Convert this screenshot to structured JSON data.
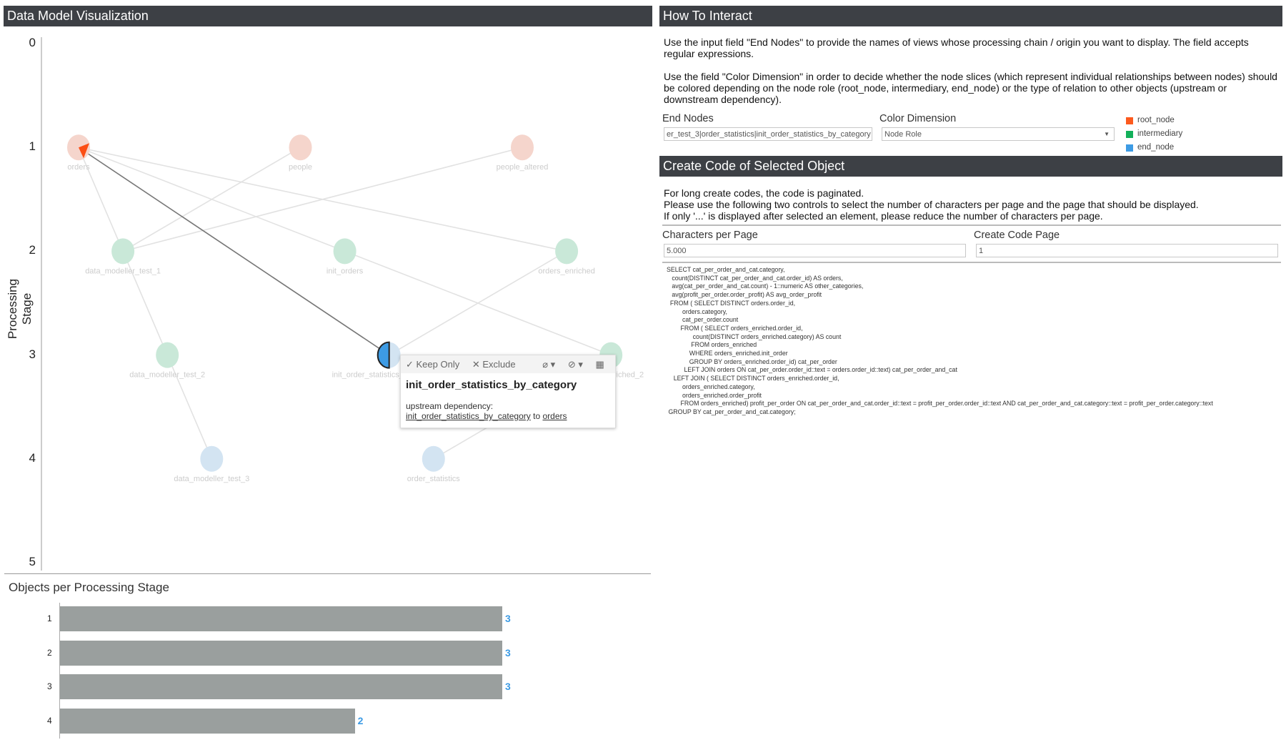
{
  "left_panel": {
    "title": "Data Model Visualization",
    "y_axis_label": "Processing Stage",
    "y_ticks": [
      "0",
      "1",
      "2",
      "3",
      "4",
      "5"
    ]
  },
  "graph": {
    "nodes": [
      {
        "name": "orders",
        "stage": 1,
        "col": 0,
        "role": "root_node",
        "highlight": true
      },
      {
        "name": "people",
        "stage": 1,
        "col": 5,
        "role": "root_node"
      },
      {
        "name": "people_altered",
        "stage": 1,
        "col": 10,
        "role": "root_node"
      },
      {
        "name": "data_modeller_test_1",
        "stage": 2,
        "col": 1,
        "role": "intermediary"
      },
      {
        "name": "init_orders",
        "stage": 2,
        "col": 6,
        "role": "intermediary"
      },
      {
        "name": "orders_enriched",
        "stage": 2,
        "col": 11,
        "role": "intermediary"
      },
      {
        "name": "data_modeller_test_2",
        "stage": 3,
        "col": 2,
        "role": "intermediary"
      },
      {
        "name": "init_order_statistics_by_category",
        "stage": 3,
        "col": 7,
        "role": "end_node",
        "highlight": true
      },
      {
        "name": "orders_enriched_2",
        "stage": 3,
        "col": 12,
        "role": "intermediary"
      },
      {
        "name": "data_modeller_test_3",
        "stage": 4,
        "col": 3,
        "role": "end_node"
      },
      {
        "name": "order_statistics",
        "stage": 4,
        "col": 8,
        "role": "end_node"
      }
    ],
    "edges": [
      [
        "orders",
        "data_modeller_test_1"
      ],
      [
        "people",
        "data_modeller_test_1"
      ],
      [
        "people_altered",
        "data_modeller_test_1"
      ],
      [
        "orders",
        "init_orders"
      ],
      [
        "init_orders",
        "orders_enriched_2"
      ],
      [
        "orders",
        "orders_enriched"
      ],
      [
        "orders_enriched",
        "init_order_statistics_by_category"
      ],
      [
        "data_modeller_test_1",
        "data_modeller_test_2"
      ],
      [
        "data_modeller_test_2",
        "data_modeller_test_3"
      ],
      [
        "order_statistics",
        "orders_enriched_2"
      ],
      [
        "orders",
        "init_order_statistics_by_category",
        "selected"
      ]
    ]
  },
  "tooltip": {
    "keep_only": "✓ Keep Only",
    "exclude": "✕ Exclude",
    "title": "init_order_statistics_by_category",
    "relation": "upstream dependency:",
    "from": "init_order_statistics_by_category",
    "to_word": "to",
    "to": "orders"
  },
  "bar_chart": {
    "title": "Objects per Processing Stage",
    "chart_data": {
      "type": "bar",
      "orientation": "horizontal",
      "categories": [
        "1",
        "2",
        "3",
        "4"
      ],
      "values": [
        3,
        3,
        3,
        2
      ],
      "title": "Objects per Processing Stage",
      "xlim": [
        0,
        3
      ]
    }
  },
  "how_to": {
    "title": "How To Interact",
    "p1": "Use the input field \"End Nodes\" to provide the names of views whose processing chain / origin you want to display. The field accepts regular expressions.",
    "p2": "Use the field \"Color Dimension\" in order to decide whether the node slices (which represent individual relationships between nodes) should be colored depending on the node role (root_node, intermediary, end_node) or the type of relation to other objects (upstream or downstream dependency).",
    "end_nodes_label": "End Nodes",
    "end_nodes_value": "er_test_3|order_statistics|init_order_statistics_by_category",
    "color_dim_label": "Color Dimension",
    "color_dim_value": "Node Role",
    "legend": [
      {
        "label": "root_node",
        "color": "#fc5a1e"
      },
      {
        "label": "intermediary",
        "color": "#13b05a"
      },
      {
        "label": "end_node",
        "color": "#3d9be4"
      }
    ]
  },
  "create_code": {
    "title": "Create Code of Selected Object",
    "l1": "For long create codes, the code is paginated.",
    "l2": "Please use the following two controls to select the number of characters per page and the page that should be displayed.",
    "l3": "If only '...' is displayed after selected an element, please reduce the number of characters per page.",
    "chars_label": "Characters per Page",
    "chars_value": "5.000",
    "page_label": "Create Code Page",
    "page_value": "1",
    "code": "SELECT cat_per_order_and_cat.category,\n   count(DISTINCT cat_per_order_and_cat.order_id) AS orders,\n   avg(cat_per_order_and_cat.count) - 1::numeric AS other_categories,\n   avg(profit_per_order.order_profit) AS avg_order_profit\n  FROM ( SELECT DISTINCT orders.order_id,\n         orders.category,\n         cat_per_order.count\n        FROM ( SELECT orders_enriched.order_id,\n               count(DISTINCT orders_enriched.category) AS count\n              FROM orders_enriched\n             WHERE orders_enriched.init_order\n             GROUP BY orders_enriched.order_id) cat_per_order\n          LEFT JOIN orders ON cat_per_order.order_id::text = orders.order_id::text) cat_per_order_and_cat\n    LEFT JOIN ( SELECT DISTINCT orders_enriched.order_id,\n         orders_enriched.category,\n         orders_enriched.order_profit\n        FROM orders_enriched) profit_per_order ON cat_per_order_and_cat.order_id::text = profit_per_order.order_id::text AND cat_per_order_and_cat.category::text = profit_per_order.category::text\n GROUP BY cat_per_order_and_cat.category;"
  }
}
